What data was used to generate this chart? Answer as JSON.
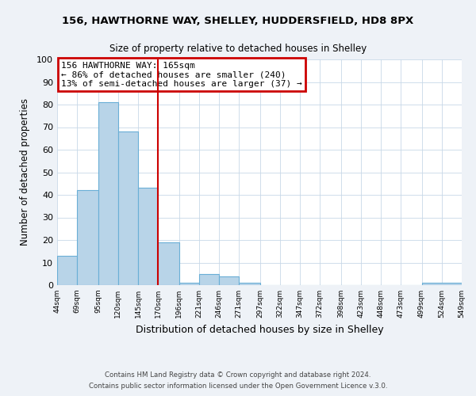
{
  "title": "156, HAWTHORNE WAY, SHELLEY, HUDDERSFIELD, HD8 8PX",
  "subtitle": "Size of property relative to detached houses in Shelley",
  "xlabel": "Distribution of detached houses by size in Shelley",
  "ylabel": "Number of detached properties",
  "bar_values": [
    13,
    42,
    81,
    68,
    43,
    19,
    1,
    5,
    4,
    1,
    0,
    0,
    0,
    0,
    0,
    0,
    0,
    0,
    1
  ],
  "bin_edges": [
    44,
    69,
    95,
    120,
    145,
    170,
    196,
    221,
    246,
    271,
    297,
    322,
    347,
    372,
    398,
    423,
    448,
    473,
    499,
    549
  ],
  "x_tick_positions": [
    44,
    69,
    95,
    120,
    145,
    170,
    196,
    221,
    246,
    271,
    297,
    322,
    347,
    372,
    398,
    423,
    448,
    473,
    499,
    524,
    549
  ],
  "x_tick_labels": [
    "44sqm",
    "69sqm",
    "95sqm",
    "120sqm",
    "145sqm",
    "170sqm",
    "196sqm",
    "221sqm",
    "246sqm",
    "271sqm",
    "297sqm",
    "322sqm",
    "347sqm",
    "372sqm",
    "398sqm",
    "423sqm",
    "448sqm",
    "473sqm",
    "499sqm",
    "524sqm",
    "549sqm"
  ],
  "bar_color": "#b8d4e8",
  "bar_edge_color": "#6aafd6",
  "vline_x": 170,
  "vline_color": "#cc0000",
  "ylim": [
    0,
    100
  ],
  "yticks": [
    0,
    10,
    20,
    30,
    40,
    50,
    60,
    70,
    80,
    90,
    100
  ],
  "annotation_title": "156 HAWTHORNE WAY: 165sqm",
  "annotation_line1": "← 86% of detached houses are smaller (240)",
  "annotation_line2": "13% of semi-detached houses are larger (37) →",
  "annotation_box_color": "#cc0000",
  "footnote1": "Contains HM Land Registry data © Crown copyright and database right 2024.",
  "footnote2": "Contains public sector information licensed under the Open Government Licence v.3.0.",
  "background_color": "#eef2f7",
  "plot_background": "#ffffff",
  "grid_color": "#c8d8e8"
}
